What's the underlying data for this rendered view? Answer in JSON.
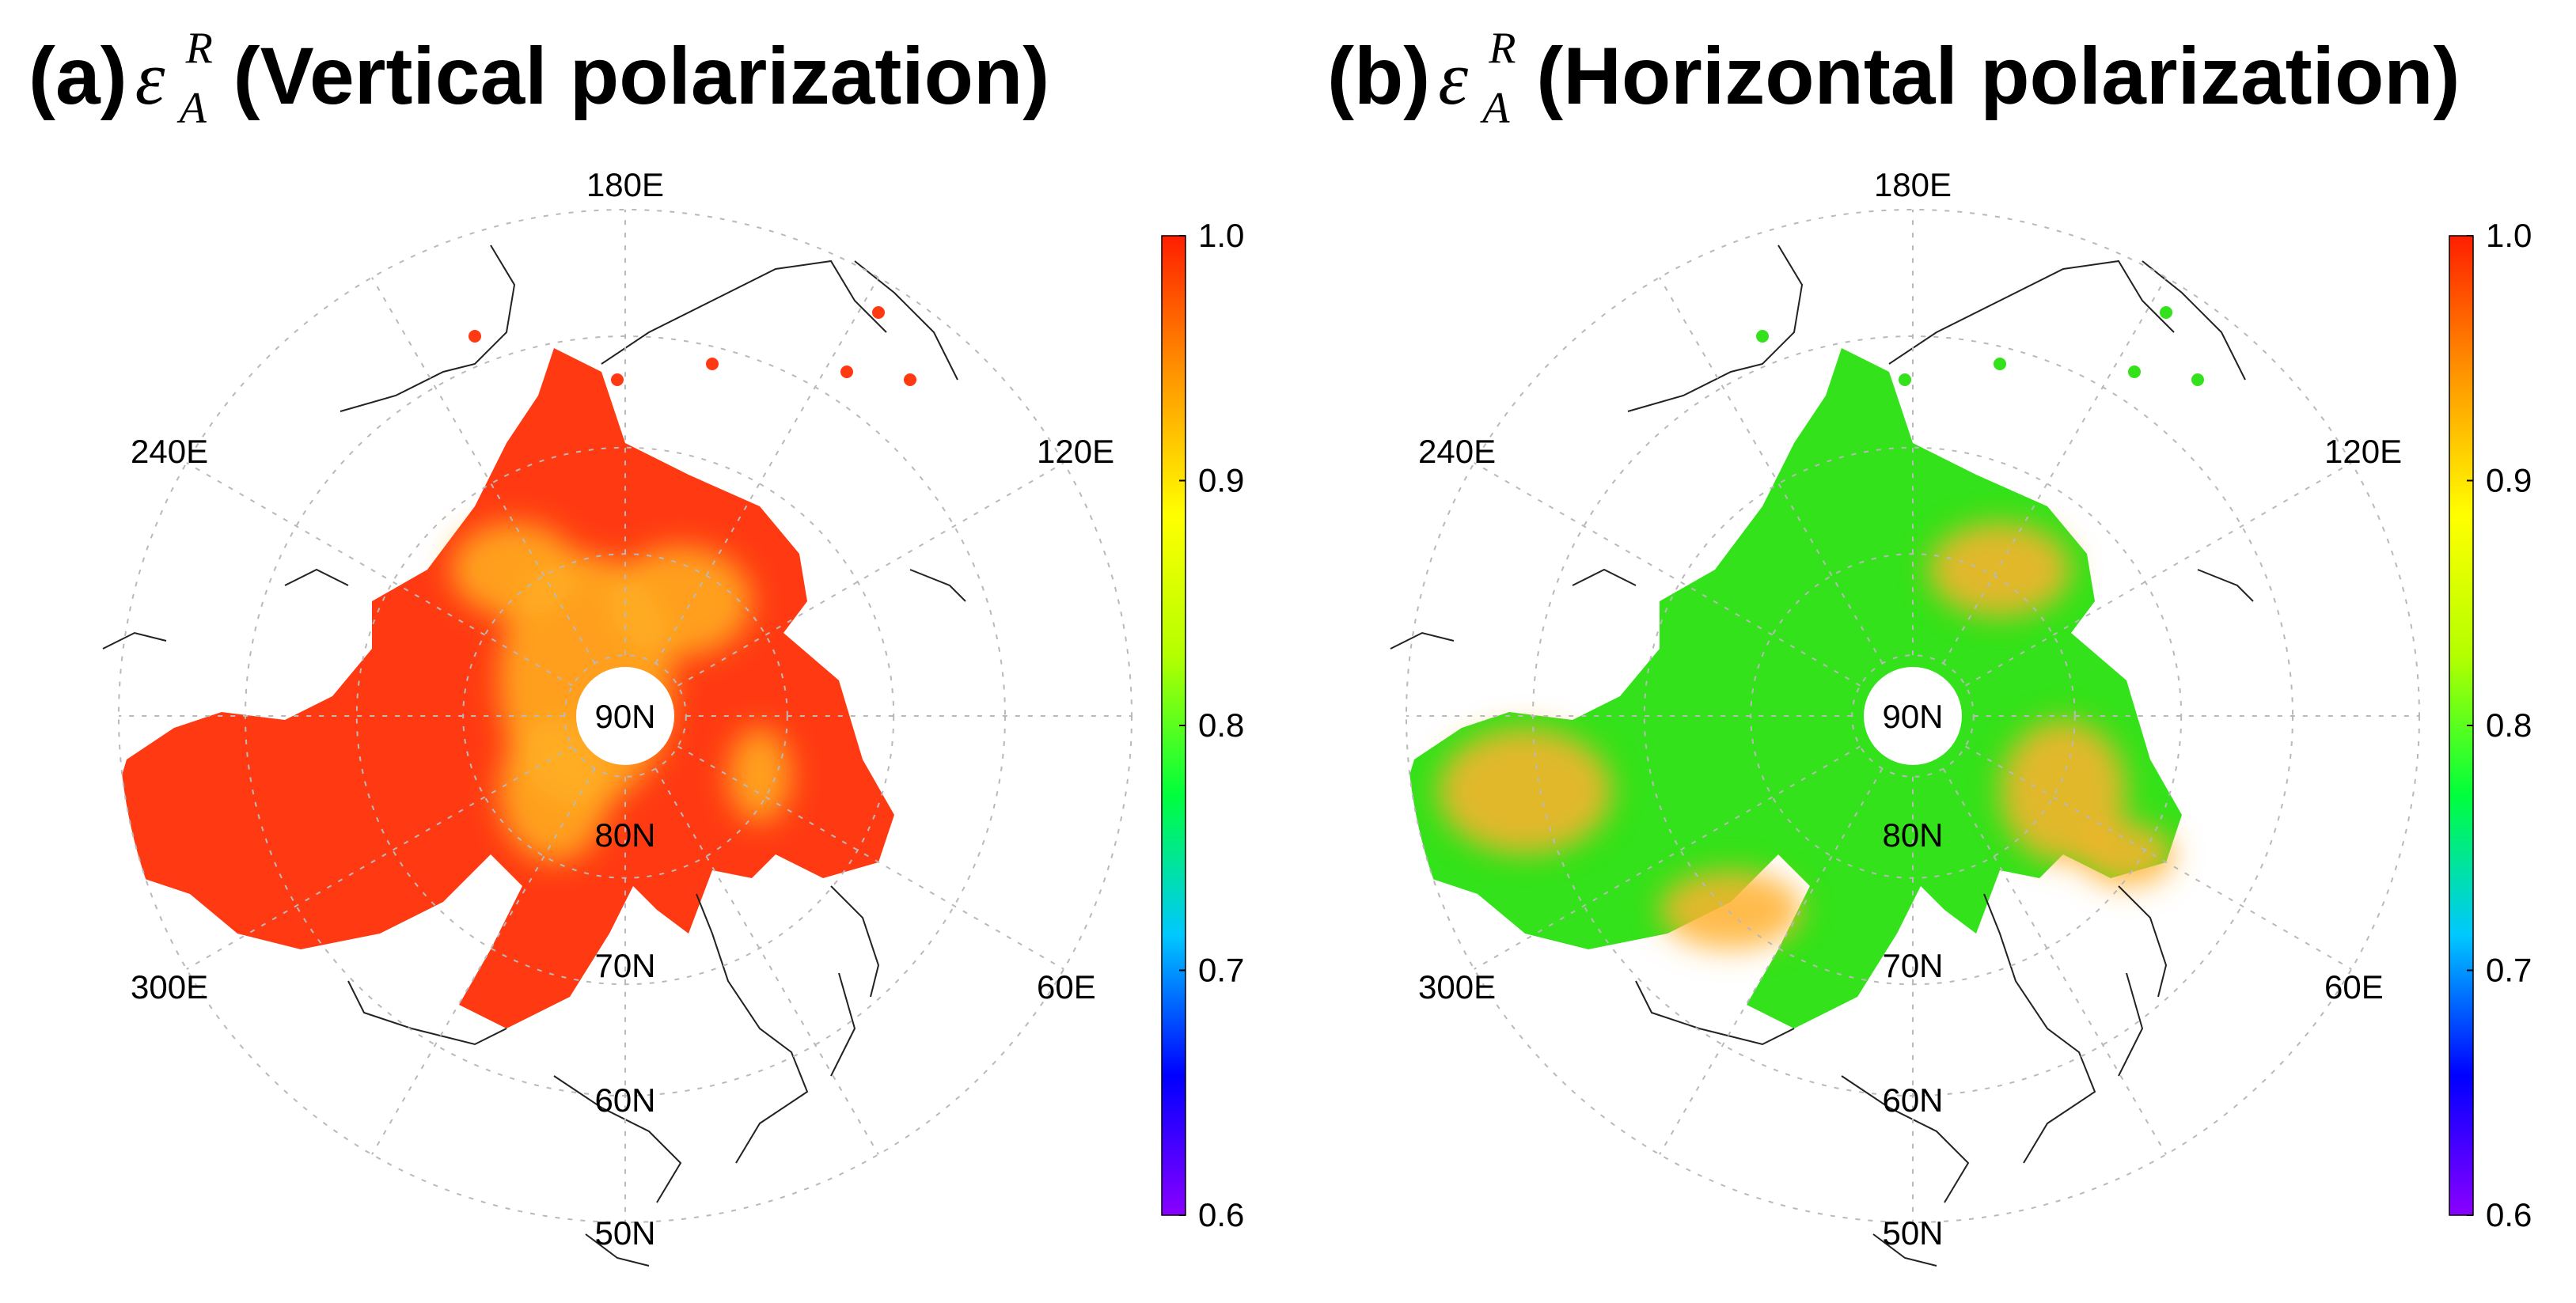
{
  "panels": [
    {
      "id": "a",
      "title_prefix": "(a)",
      "symbol": "ε",
      "symbol_sup": "R",
      "symbol_sub": "A",
      "title_suffix": "(Vertical polarization)",
      "dominant_color": "#ff3a12",
      "secondary_color": "#ffb020"
    },
    {
      "id": "b",
      "title_prefix": "(b)",
      "symbol": "ε",
      "symbol_sup": "R",
      "symbol_sub": "A",
      "title_suffix": "(Horizontal polarization)",
      "dominant_color": "#33e21a",
      "secondary_color": "#ffb030"
    }
  ],
  "longitude_labels": [
    "180E",
    "120E",
    "60E",
    "240E",
    "300E"
  ],
  "latitude_labels": [
    "90N",
    "80N",
    "70N",
    "60N",
    "50N"
  ],
  "colorbar": {
    "ticks": [
      "1.0",
      "0.9",
      "0.8",
      "0.7",
      "0.6"
    ],
    "range": [
      0.6,
      1.0
    ],
    "colors": [
      "#8a00ff",
      "#0000ff",
      "#00c8ff",
      "#00ff3c",
      "#b4ff00",
      "#ffff00",
      "#ff9600",
      "#ff1e00"
    ]
  }
}
